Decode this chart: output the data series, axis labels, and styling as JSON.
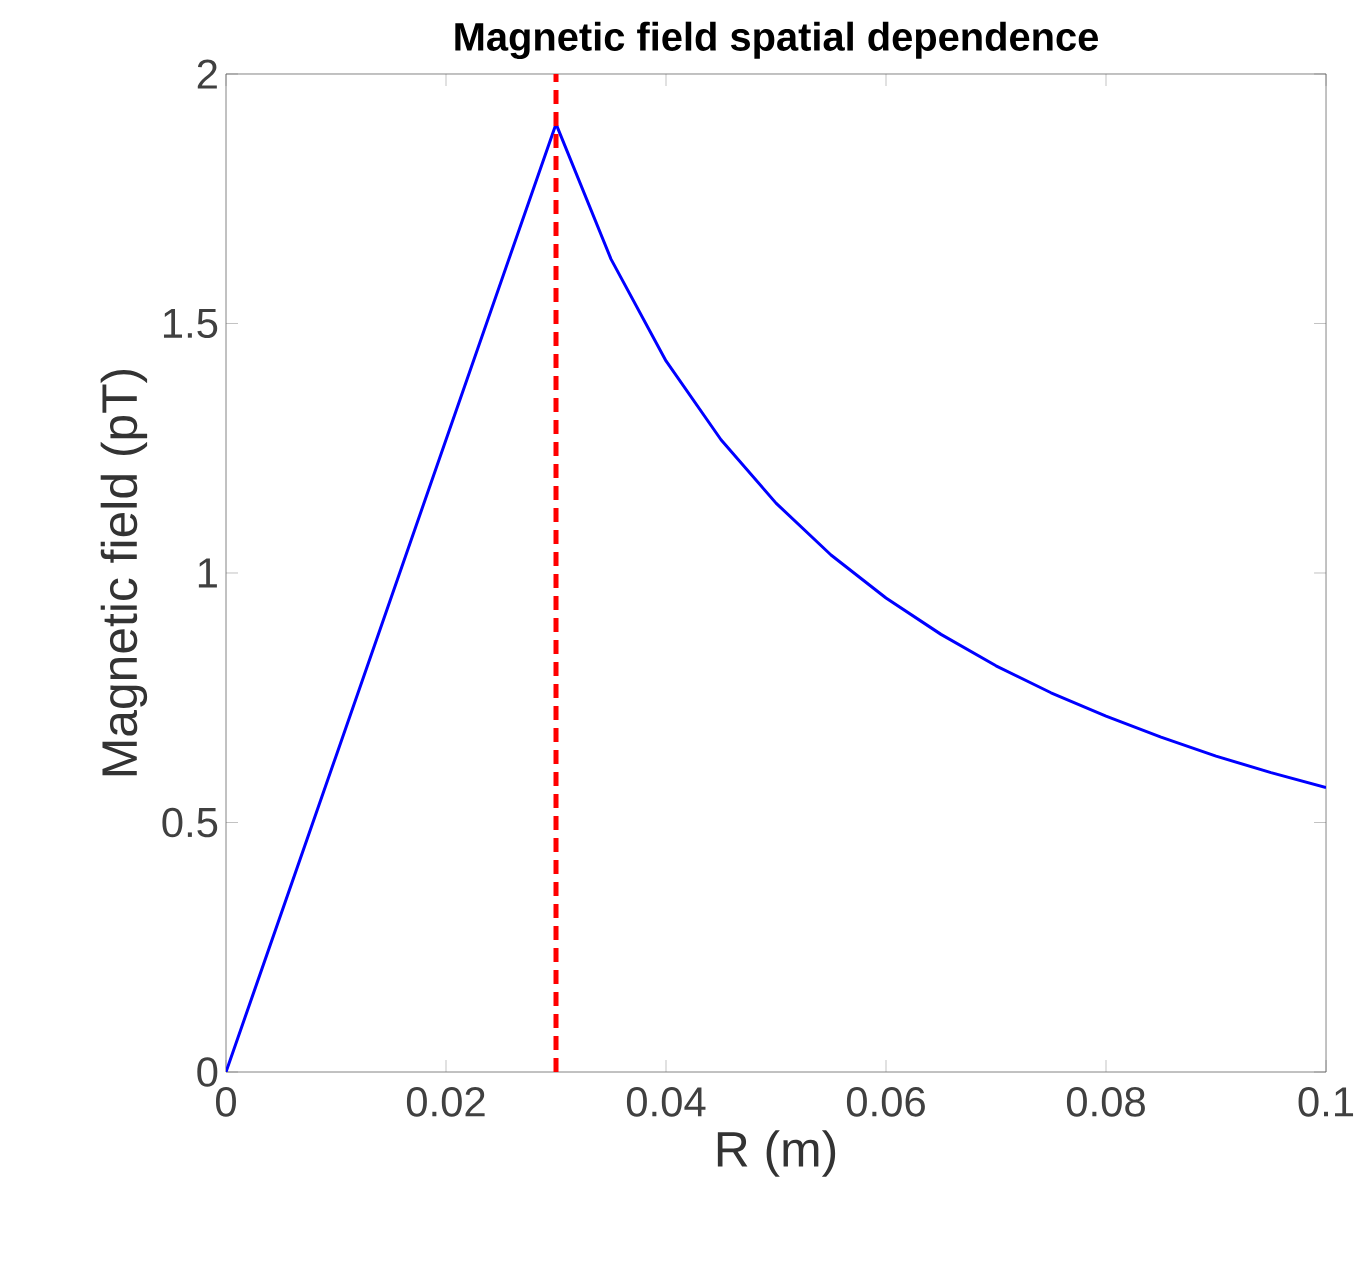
{
  "chart_data": {
    "type": "line",
    "title": "Magnetic field spatial dependence",
    "xlabel": "R (m)",
    "ylabel": "Magnetic field (pT)",
    "x": [
      0,
      0.01,
      0.02,
      0.03,
      0.035,
      0.04,
      0.045,
      0.05,
      0.055,
      0.06,
      0.065,
      0.07,
      0.075,
      0.08,
      0.085,
      0.09,
      0.095,
      0.1
    ],
    "series": [
      {
        "color": "#0000ff",
        "values": [
          0,
          0.633,
          1.267,
          1.9,
          1.629,
          1.425,
          1.267,
          1.14,
          1.036,
          0.95,
          0.877,
          0.814,
          0.76,
          0.713,
          0.671,
          0.633,
          0.6,
          0.57
        ]
      }
    ],
    "xlim": [
      0,
      0.1
    ],
    "ylim": [
      0,
      2
    ],
    "xticks": [
      0,
      0.02,
      0.04,
      0.06,
      0.08,
      0.1
    ],
    "yticks": [
      0,
      0.5,
      1,
      1.5,
      2
    ],
    "ref_lines": [
      {
        "axis": "x",
        "value": 0.03,
        "color": "#ff0000",
        "line_style": "dashed"
      }
    ],
    "grid": false,
    "marker": "none",
    "line_style": "solid"
  }
}
